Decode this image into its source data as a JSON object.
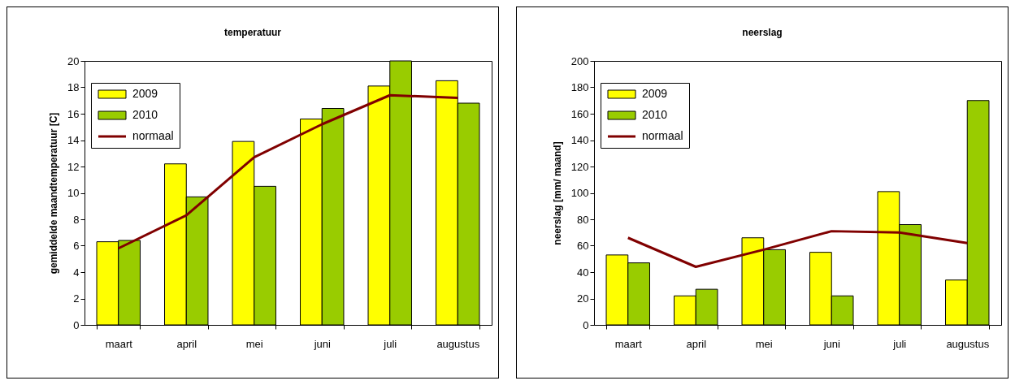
{
  "chart_data": [
    {
      "type": "bar",
      "title": "temperatuur",
      "ylabel": "gemiddelde maandtemperatuur [C]",
      "categories": [
        "maart",
        "april",
        "mei",
        "juni",
        "juli",
        "augustus"
      ],
      "series": [
        {
          "name": "2009",
          "color": "#ffff00",
          "values": [
            6.3,
            12.2,
            13.9,
            15.6,
            18.1,
            18.5
          ]
        },
        {
          "name": "2010",
          "color": "#99cc00",
          "values": [
            6.4,
            9.7,
            10.5,
            16.4,
            20.0,
            16.8
          ]
        },
        {
          "name": "normaal",
          "type": "line",
          "color": "#800000",
          "values": [
            5.8,
            8.3,
            12.7,
            15.2,
            17.4,
            17.2
          ]
        }
      ],
      "ylim": [
        0,
        20
      ],
      "yticks": [
        0,
        2,
        4,
        6,
        8,
        10,
        12,
        14,
        16,
        18,
        20
      ],
      "legend": "top left"
    },
    {
      "type": "bar",
      "title": "neerslag",
      "ylabel": "neerslag [mm/ maand]",
      "categories": [
        "maart",
        "april",
        "mei",
        "juni",
        "juli",
        "augustus"
      ],
      "series": [
        {
          "name": "2009",
          "color": "#ffff00",
          "values": [
            53,
            22,
            66,
            55,
            101,
            34
          ]
        },
        {
          "name": "2010",
          "color": "#99cc00",
          "values": [
            47,
            27,
            57,
            22,
            76,
            170
          ]
        },
        {
          "name": "normaal",
          "type": "line",
          "color": "#800000",
          "values": [
            66,
            44,
            57,
            71,
            70,
            62
          ]
        }
      ],
      "ylim": [
        0,
        200
      ],
      "yticks": [
        0,
        20,
        40,
        60,
        80,
        100,
        120,
        140,
        160,
        180,
        200
      ],
      "legend": "top left"
    }
  ]
}
